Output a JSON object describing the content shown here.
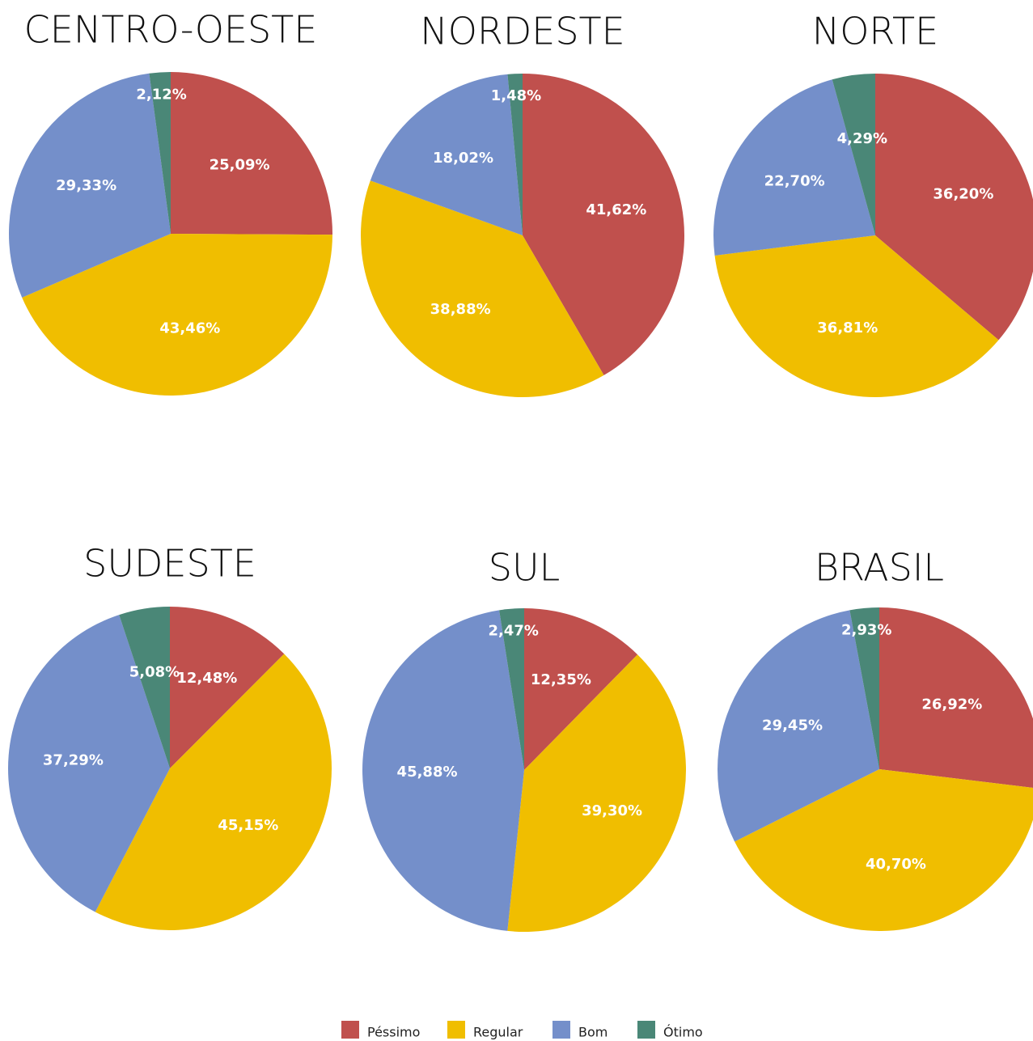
{
  "categories": [
    "Péssimo",
    "Regular",
    "Bom",
    "Ótimo"
  ],
  "colors": [
    "#c0504d",
    "#f0be00",
    "#748fca",
    "#4a8777"
  ],
  "chart_data": [
    {
      "type": "pie",
      "title": "CENTRO-OESTE",
      "values": [
        25.09,
        43.46,
        29.33,
        2.12
      ],
      "value_labels": [
        "25,09%",
        "43,46%",
        "29,33%",
        "2,12%"
      ]
    },
    {
      "type": "pie",
      "title": "NORDESTE",
      "values": [
        41.62,
        38.88,
        18.02,
        1.48
      ],
      "value_labels": [
        "41,62%",
        "38,88%",
        "18,02%",
        "1,48%"
      ]
    },
    {
      "type": "pie",
      "title": "NORTE",
      "values": [
        36.2,
        36.81,
        22.7,
        4.29
      ],
      "value_labels": [
        "36,20%",
        "36,81%",
        "22,70%",
        "4,29%"
      ]
    },
    {
      "type": "pie",
      "title": "SUDESTE",
      "values": [
        12.48,
        45.15,
        37.29,
        5.08
      ],
      "value_labels": [
        "12,48%",
        "45,15%",
        "37,29%",
        "5,08%"
      ]
    },
    {
      "type": "pie",
      "title": "SUL",
      "values": [
        12.35,
        39.3,
        45.88,
        2.47
      ],
      "value_labels": [
        "12,35%",
        "39,30%",
        "45,88%",
        "2,47%"
      ]
    },
    {
      "type": "pie",
      "title": "BRASIL",
      "values": [
        26.92,
        40.7,
        29.45,
        2.93
      ],
      "value_labels": [
        "26,92%",
        "40,70%",
        "29,45%",
        "2,93%"
      ]
    }
  ]
}
